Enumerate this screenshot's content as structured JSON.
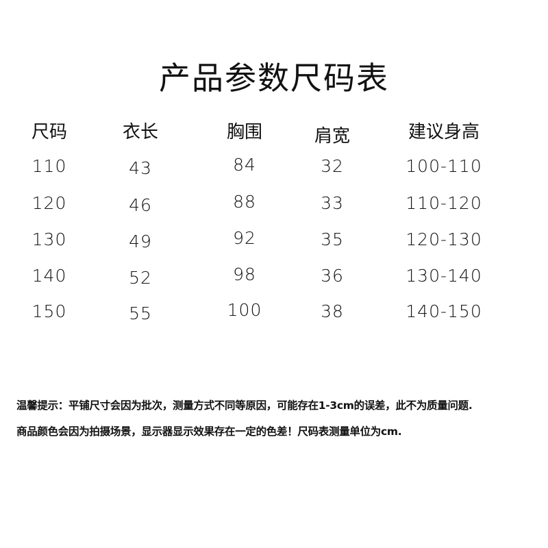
{
  "title": "产品参数尺码表",
  "table": {
    "headers": [
      "尺码",
      "衣长",
      "胸围",
      "肩宽",
      "建议身高"
    ],
    "rows": [
      [
        "110",
        "43",
        "84",
        "32",
        "100-110"
      ],
      [
        "120",
        "46",
        "88",
        "33",
        "110-120"
      ],
      [
        "130",
        "49",
        "92",
        "35",
        "120-130"
      ],
      [
        "140",
        "52",
        "98",
        "36",
        "130-140"
      ],
      [
        "150",
        "55",
        "100",
        "38",
        "140-150"
      ]
    ]
  },
  "notes": [
    "温馨提示：平铺尺寸会因为批次，测量方式不同等原因，可能存在1-3cm的误差，此不为质量问题.",
    "商品颜色会因为拍摄场景，显示器显示效果存在一定的色差！尺码表测量单位为cm."
  ]
}
